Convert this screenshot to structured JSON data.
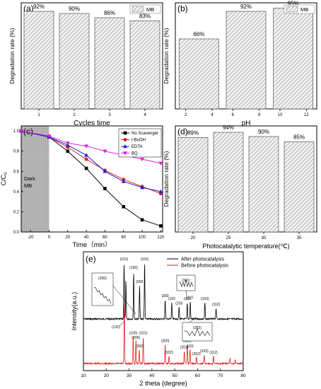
{
  "chart_data": [
    {
      "panel": "(a)",
      "type": "bar",
      "categories": [
        "1",
        "2",
        "3",
        "4"
      ],
      "values": [
        92,
        90,
        86,
        83
      ],
      "data_labels": [
        "92%",
        "90%",
        "86%",
        "83%"
      ],
      "xlabel": "Cycles time",
      "ylabel": "Degradation rate (%)",
      "legend": [
        "MB"
      ],
      "legend_position": "top-right",
      "ylim": [
        0,
        100
      ]
    },
    {
      "panel": "(b)",
      "type": "bar",
      "categories": [
        "2-4",
        "6-8",
        "10-12"
      ],
      "values": [
        66,
        92,
        95
      ],
      "data_labels": [
        "66%",
        "92%",
        "95%"
      ],
      "x_ticks": [
        "2",
        "4",
        "6",
        "8",
        "10",
        "12"
      ],
      "xlabel": "pH",
      "ylabel": "Degradation rate (%)",
      "legend": [
        "MB"
      ],
      "legend_position": "top-right",
      "ylim": [
        0,
        100
      ]
    },
    {
      "panel": "(c)",
      "type": "line",
      "x": [
        -30,
        0,
        20,
        40,
        60,
        80,
        100,
        120
      ],
      "x_ticks": [
        "-20",
        "0",
        "20",
        "40",
        "60",
        "80",
        "100",
        "120"
      ],
      "y_ticks": [
        "0.0",
        "0.2",
        "0.4",
        "0.6",
        "0.8",
        "1.0"
      ],
      "xlim": [
        -30,
        122
      ],
      "ylim": [
        0,
        1.05
      ],
      "xlabel": "Time（min）",
      "ylabel": "C/C",
      "ylabel_sub": "0",
      "annotation": [
        "Dark",
        "MB"
      ],
      "legend_position": "top-right",
      "series": [
        {
          "name": "No Scavenger",
          "color": "#000000",
          "marker": "square",
          "values": [
            1.0,
            0.94,
            0.8,
            0.63,
            0.43,
            0.25,
            0.12,
            0.06
          ]
        },
        {
          "name": "t-BuOH",
          "color": "#e02020",
          "marker": "circle",
          "values": [
            1.0,
            0.94,
            0.84,
            0.72,
            0.61,
            0.52,
            0.45,
            0.38
          ]
        },
        {
          "name": "EDTA",
          "color": "#2020d0",
          "marker": "triangle",
          "values": [
            1.0,
            0.94,
            0.86,
            0.76,
            0.6,
            0.5,
            0.44,
            0.4
          ]
        },
        {
          "name": "BQ",
          "color": "#e020e0",
          "marker": "triangle-down",
          "values": [
            1.0,
            0.95,
            0.88,
            0.85,
            0.8,
            0.76,
            0.72,
            0.68
          ]
        }
      ]
    },
    {
      "panel": "(d)",
      "type": "bar",
      "categories": [
        "20",
        "25",
        "30",
        "35"
      ],
      "values": [
        89,
        94,
        90,
        85
      ],
      "data_labels": [
        "89%",
        "94%",
        "90%",
        "85%"
      ],
      "xlabel": "Photocatalytic temperature(℃)",
      "ylabel": "Degradation rate (%)",
      "ylim": [
        0,
        100
      ]
    },
    {
      "panel": "(e)",
      "type": "line",
      "xlim": [
        10,
        80
      ],
      "x_ticks": [
        "10",
        "20",
        "30",
        "40",
        "50",
        "60",
        "70",
        "80"
      ],
      "xlabel": "2 theta (degree)",
      "ylabel": "Intensity(a.u.)",
      "legend_position": "top-right",
      "series": [
        {
          "name": "After photocatalysis",
          "color": "#000000"
        },
        {
          "name": "Before photocatalysis",
          "color": "#e02020"
        }
      ],
      "peaks_after": [
        {
          "x": 27.8,
          "h": 1.0,
          "label": "(131)"
        },
        {
          "x": 28.6,
          "h": 0.7,
          "label": ""
        },
        {
          "x": 32.0,
          "h": 0.85,
          "label": "(100)"
        },
        {
          "x": 34.6,
          "h": 0.6,
          "label": "(002"
        },
        {
          "x": 36.8,
          "h": 1.0,
          "label": "(101)"
        },
        {
          "x": 45.8,
          "h": 0.35,
          "label": "(260"
        },
        {
          "x": 48.7,
          "h": 0.3,
          "label": "(102"
        },
        {
          "x": 51.9,
          "h": 0.22,
          "label": "(203"
        },
        {
          "x": 55.5,
          "h": 0.3,
          "label": "(331"
        },
        {
          "x": 56.8,
          "h": 0.32,
          "label": "110"
        },
        {
          "x": 63.2,
          "h": 0.3,
          "label": "(103)"
        },
        {
          "x": 68.1,
          "h": 0.2,
          "label": "(112)"
        }
      ],
      "peaks_before": [
        {
          "x": 27.9,
          "h": 1.0,
          "label": ""
        },
        {
          "x": 31.8,
          "h": 0.42,
          "label": "(100)"
        },
        {
          "x": 33.0,
          "h": 0.35,
          "label": "(200)"
        },
        {
          "x": 34.5,
          "h": 0.22,
          "label": "(002"
        },
        {
          "x": 36.2,
          "h": 0.42,
          "label": "(101)"
        },
        {
          "x": 45.8,
          "h": 0.3,
          "label": "(260)"
        },
        {
          "x": 47.5,
          "h": 0.12,
          "label": "(102)"
        },
        {
          "x": 54.2,
          "h": 0.2,
          "label": "(203)"
        },
        {
          "x": 55.5,
          "h": 0.3,
          "label": "(331)"
        },
        {
          "x": 56.7,
          "h": 0.22,
          "label": "110)"
        },
        {
          "x": 59.5,
          "h": 0.1,
          "label": "(262)"
        },
        {
          "x": 62.9,
          "h": 0.14,
          "label": "(103)"
        },
        {
          "x": 67.0,
          "h": 0.12,
          "label": "(112)"
        },
        {
          "x": 74.2,
          "h": 0.08,
          "label": ""
        },
        {
          "x": 76.5,
          "h": 0.06,
          "label": ""
        }
      ],
      "inset_labels": [
        "(200)",
        "(331)",
        "(262)"
      ],
      "callout_label": "(131)"
    }
  ]
}
